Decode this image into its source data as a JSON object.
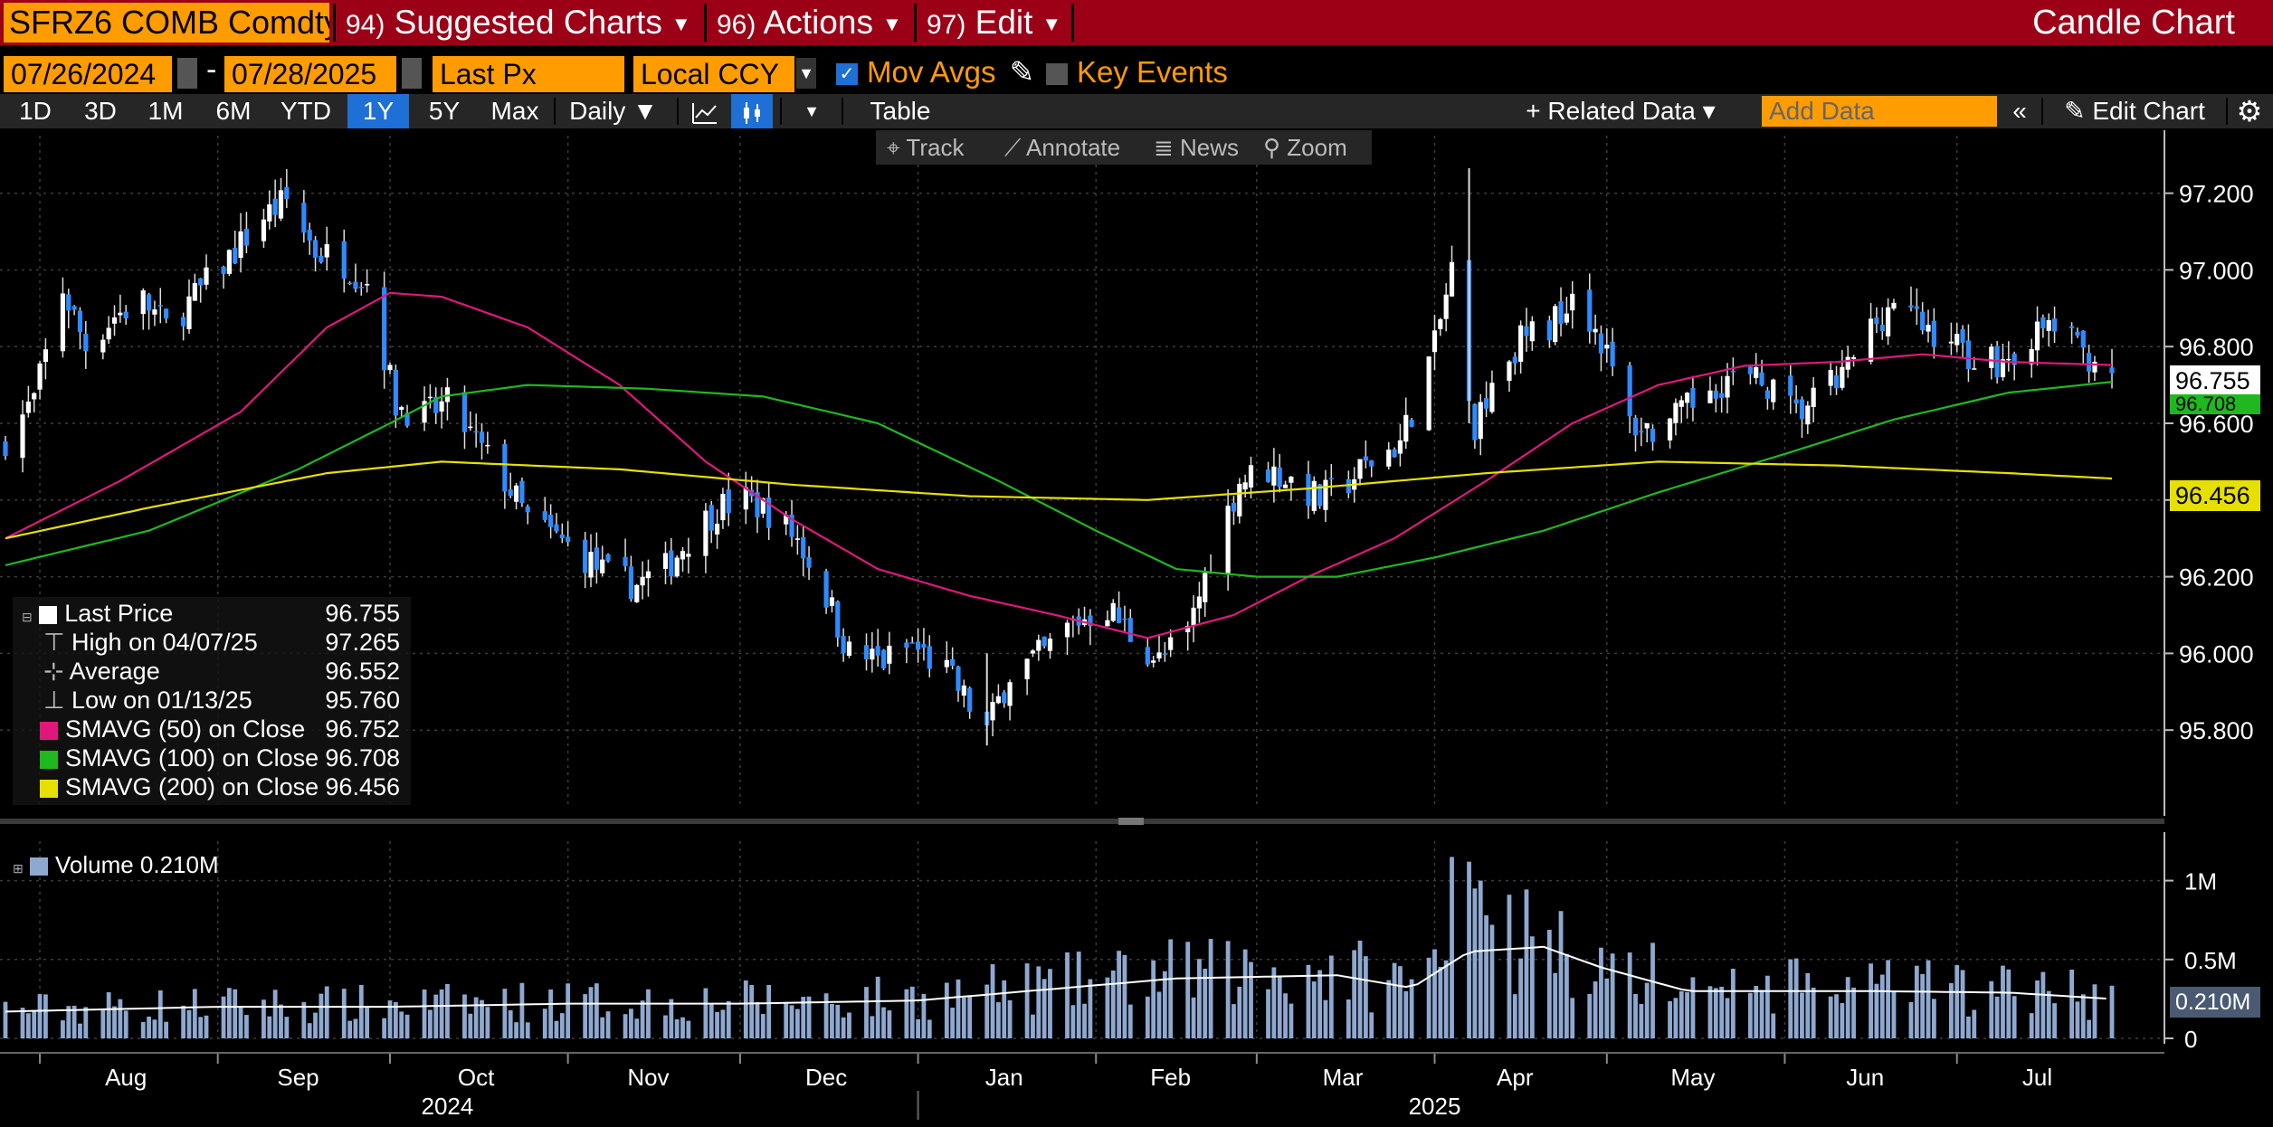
{
  "header": {
    "ticker": "SFRZ6 COMB Comdty",
    "menus": [
      {
        "num": "94)",
        "label": "Suggested Charts"
      },
      {
        "num": "96)",
        "label": "Actions"
      },
      {
        "num": "97)",
        "label": "Edit"
      }
    ],
    "title": "Candle Chart"
  },
  "controls": {
    "start_date": "07/26/2024",
    "end_date": "07/28/2025",
    "separator": "-",
    "field": "Last Px",
    "currency": "Local CCY",
    "mov_avgs_label": "Mov Avgs",
    "key_events_label": "Key Events"
  },
  "toolbar": {
    "periods": [
      "1D",
      "3D",
      "1M",
      "6M",
      "YTD",
      "1Y",
      "5Y",
      "Max"
    ],
    "active_period": "1Y",
    "frequency": "Daily ▼",
    "table_label": "Table",
    "related_data": "+ Related Data ▾",
    "add_data_placeholder": "Add Data",
    "edit_chart": "Edit Chart"
  },
  "chart_tools": {
    "track": "Track",
    "annotate": "Annotate",
    "news": "News",
    "zoom": "Zoom"
  },
  "legend": {
    "rows": [
      {
        "label": "Last Price",
        "value": "96.755"
      },
      {
        "label": "High on 04/07/25",
        "value": "97.265"
      },
      {
        "label": "Average",
        "value": "96.552"
      },
      {
        "label": "Low on 01/13/25",
        "value": "95.760"
      },
      {
        "label": "SMAVG (50)  on Close",
        "value": "96.752"
      },
      {
        "label": "SMAVG (100)  on Close",
        "value": "96.708"
      },
      {
        "label": "SMAVG (200)  on Close",
        "value": "96.456"
      }
    ],
    "volume_label": "Volume 0.210M"
  },
  "colors": {
    "topbar": "#9c0017",
    "accent_orange": "#ff9c00",
    "up_candle": "#ffffff",
    "down_candle": "#2e8bff",
    "sma50": "#e0187c",
    "sma100": "#1fb81f",
    "sma200": "#e6e000",
    "volume": "#8ea8d0"
  },
  "axis_tags": {
    "last": "96.755",
    "sma100": "96.708",
    "sma200": "96.456",
    "volume": "0.210M"
  },
  "chart_data": {
    "type": "candlestick",
    "price_ylim": [
      95.6,
      97.35
    ],
    "price_ticks": [
      "97.200",
      "97.000",
      "96.800",
      "96.600",
      "96.400",
      "96.200",
      "96.000",
      "95.800"
    ],
    "volume_ticks": [
      "1M",
      "0.5M",
      "0"
    ],
    "months": [
      "Aug",
      "Sep",
      "Oct",
      "Nov",
      "Dec",
      "Jan",
      "Feb",
      "Mar",
      "Apr",
      "May",
      "Jun",
      "Jul"
    ],
    "years": [
      "2024",
      "2025"
    ],
    "close_path": [
      [
        "2024-07-26",
        96.56
      ],
      [
        "2024-07-31",
        96.66
      ],
      [
        "2024-08-05",
        96.95
      ],
      [
        "2024-08-09",
        96.8
      ],
      [
        "2024-08-14",
        96.88
      ],
      [
        "2024-08-19",
        96.92
      ],
      [
        "2024-08-23",
        96.85
      ],
      [
        "2024-08-28",
        96.93
      ],
      [
        "2024-09-04",
        97.05
      ],
      [
        "2024-09-09",
        97.14
      ],
      [
        "2024-09-13",
        97.18
      ],
      [
        "2024-09-18",
        97.05
      ],
      [
        "2024-09-23",
        97.02
      ],
      [
        "2024-09-27",
        96.97
      ],
      [
        "2024-10-02",
        96.65
      ],
      [
        "2024-10-07",
        96.62
      ],
      [
        "2024-10-11",
        96.65
      ],
      [
        "2024-10-16",
        96.55
      ],
      [
        "2024-10-21",
        96.45
      ],
      [
        "2024-10-25",
        96.35
      ],
      [
        "2024-10-30",
        96.3
      ],
      [
        "2024-11-04",
        96.25
      ],
      [
        "2024-11-08",
        96.2
      ],
      [
        "2024-11-13",
        96.18
      ],
      [
        "2024-11-18",
        96.22
      ],
      [
        "2024-11-22",
        96.3
      ],
      [
        "2024-11-27",
        96.38
      ],
      [
        "2024-12-02",
        96.4
      ],
      [
        "2024-12-06",
        96.37
      ],
      [
        "2024-12-11",
        96.3
      ],
      [
        "2024-12-16",
        96.15
      ],
      [
        "2024-12-20",
        96.0
      ],
      [
        "2024-12-26",
        95.98
      ],
      [
        "2024-12-31",
        96.02
      ],
      [
        "2025-01-06",
        95.95
      ],
      [
        "2025-01-13",
        95.8
      ],
      [
        "2025-01-17",
        95.95
      ],
      [
        "2025-01-23",
        96.0
      ],
      [
        "2025-01-28",
        96.08
      ],
      [
        "2025-02-03",
        96.12
      ],
      [
        "2025-02-07",
        96.05
      ],
      [
        "2025-02-12",
        95.98
      ],
      [
        "2025-02-17",
        96.05
      ],
      [
        "2025-02-21",
        96.25
      ],
      [
        "2025-02-26",
        96.45
      ],
      [
        "2025-03-03",
        96.48
      ],
      [
        "2025-03-07",
        96.45
      ],
      [
        "2025-03-12",
        96.4
      ],
      [
        "2025-03-17",
        96.45
      ],
      [
        "2025-03-21",
        96.5
      ],
      [
        "2025-03-26",
        96.55
      ],
      [
        "2025-04-01",
        96.8
      ],
      [
        "2025-04-04",
        97.0
      ],
      [
        "2025-04-08",
        96.6
      ],
      [
        "2025-04-11",
        96.72
      ],
      [
        "2025-04-16",
        96.82
      ],
      [
        "2025-04-21",
        96.85
      ],
      [
        "2025-04-25",
        96.95
      ],
      [
        "2025-04-30",
        96.82
      ],
      [
        "2025-05-05",
        96.6
      ],
      [
        "2025-05-09",
        96.58
      ],
      [
        "2025-05-14",
        96.62
      ],
      [
        "2025-05-19",
        96.7
      ],
      [
        "2025-05-23",
        96.72
      ],
      [
        "2025-05-29",
        96.7
      ],
      [
        "2025-06-03",
        96.62
      ],
      [
        "2025-06-06",
        96.66
      ],
      [
        "2025-06-11",
        96.72
      ],
      [
        "2025-06-16",
        96.85
      ],
      [
        "2025-06-20",
        96.92
      ],
      [
        "2025-06-25",
        96.85
      ],
      [
        "2025-06-30",
        96.82
      ],
      [
        "2025-07-03",
        96.78
      ],
      [
        "2025-07-09",
        96.76
      ],
      [
        "2025-07-14",
        96.82
      ],
      [
        "2025-07-18",
        96.86
      ],
      [
        "2025-07-23",
        96.78
      ],
      [
        "2025-07-28",
        96.755
      ]
    ],
    "series": [
      {
        "name": "SMAVG (50)  on Close",
        "points": [
          [
            "2024-07-26",
            96.3
          ],
          [
            "2024-08-15",
            96.45
          ],
          [
            "2024-09-05",
            96.63
          ],
          [
            "2024-09-20",
            96.85
          ],
          [
            "2024-10-01",
            96.94
          ],
          [
            "2024-10-10",
            96.93
          ],
          [
            "2024-10-25",
            96.85
          ],
          [
            "2024-11-10",
            96.7
          ],
          [
            "2024-11-25",
            96.5
          ],
          [
            "2024-12-10",
            96.35
          ],
          [
            "2024-12-25",
            96.22
          ],
          [
            "2025-01-10",
            96.15
          ],
          [
            "2025-01-25",
            96.1
          ],
          [
            "2025-02-10",
            96.04
          ],
          [
            "2025-02-25",
            96.1
          ],
          [
            "2025-03-10",
            96.2
          ],
          [
            "2025-03-25",
            96.3
          ],
          [
            "2025-04-10",
            96.45
          ],
          [
            "2025-04-25",
            96.6
          ],
          [
            "2025-05-10",
            96.7
          ],
          [
            "2025-05-25",
            96.75
          ],
          [
            "2025-06-10",
            96.76
          ],
          [
            "2025-06-25",
            96.78
          ],
          [
            "2025-07-10",
            96.76
          ],
          [
            "2025-07-28",
            96.752
          ]
        ]
      },
      {
        "name": "SMAVG (100)  on Close",
        "points": [
          [
            "2024-07-26",
            96.23
          ],
          [
            "2024-08-20",
            96.32
          ],
          [
            "2024-09-15",
            96.48
          ],
          [
            "2024-10-01",
            96.6
          ],
          [
            "2024-10-10",
            96.67
          ],
          [
            "2024-10-25",
            96.7
          ],
          [
            "2024-11-15",
            96.69
          ],
          [
            "2024-12-05",
            96.67
          ],
          [
            "2024-12-25",
            96.6
          ],
          [
            "2025-01-15",
            96.45
          ],
          [
            "2025-02-01",
            96.32
          ],
          [
            "2025-02-15",
            96.22
          ],
          [
            "2025-03-01",
            96.2
          ],
          [
            "2025-03-15",
            96.2
          ],
          [
            "2025-04-01",
            96.25
          ],
          [
            "2025-04-20",
            96.32
          ],
          [
            "2025-05-10",
            96.42
          ],
          [
            "2025-06-01",
            96.52
          ],
          [
            "2025-06-20",
            96.61
          ],
          [
            "2025-07-10",
            96.68
          ],
          [
            "2025-07-28",
            96.708
          ]
        ]
      },
      {
        "name": "SMAVG (200)  on Close",
        "points": [
          [
            "2024-07-26",
            96.3
          ],
          [
            "2024-08-20",
            96.38
          ],
          [
            "2024-09-20",
            96.47
          ],
          [
            "2024-10-10",
            96.5
          ],
          [
            "2024-11-10",
            96.48
          ],
          [
            "2024-12-10",
            96.44
          ],
          [
            "2025-01-10",
            96.41
          ],
          [
            "2025-02-10",
            96.4
          ],
          [
            "2025-03-10",
            96.43
          ],
          [
            "2025-04-10",
            96.47
          ],
          [
            "2025-05-10",
            96.5
          ],
          [
            "2025-06-10",
            96.49
          ],
          [
            "2025-07-10",
            96.47
          ],
          [
            "2025-07-28",
            96.456
          ]
        ]
      }
    ],
    "volume_ma": [
      [
        "2024-07-26",
        0.17
      ],
      [
        "2024-09-01",
        0.2
      ],
      [
        "2024-10-01",
        0.2
      ],
      [
        "2024-11-01",
        0.22
      ],
      [
        "2024-12-01",
        0.22
      ],
      [
        "2025-01-01",
        0.24
      ],
      [
        "2025-02-15",
        0.38
      ],
      [
        "2025-03-15",
        0.4
      ],
      [
        "2025-03-28",
        0.32
      ],
      [
        "2025-04-07",
        0.55
      ],
      [
        "2025-04-20",
        0.58
      ],
      [
        "2025-04-30",
        0.45
      ],
      [
        "2025-05-15",
        0.3
      ],
      [
        "2025-06-15",
        0.3
      ],
      [
        "2025-07-10",
        0.29
      ],
      [
        "2025-07-28",
        0.25
      ]
    ],
    "volume_spikes": [
      [
        "2025-04-04",
        1.15
      ],
      [
        "2025-04-07",
        1.12
      ],
      [
        "2025-04-08",
        0.95
      ],
      [
        "2025-04-09",
        1.0
      ],
      [
        "2025-04-10",
        0.78
      ],
      [
        "2025-04-11",
        0.72
      ]
    ],
    "high": 97.265,
    "low": 95.76,
    "last": 96.755
  }
}
